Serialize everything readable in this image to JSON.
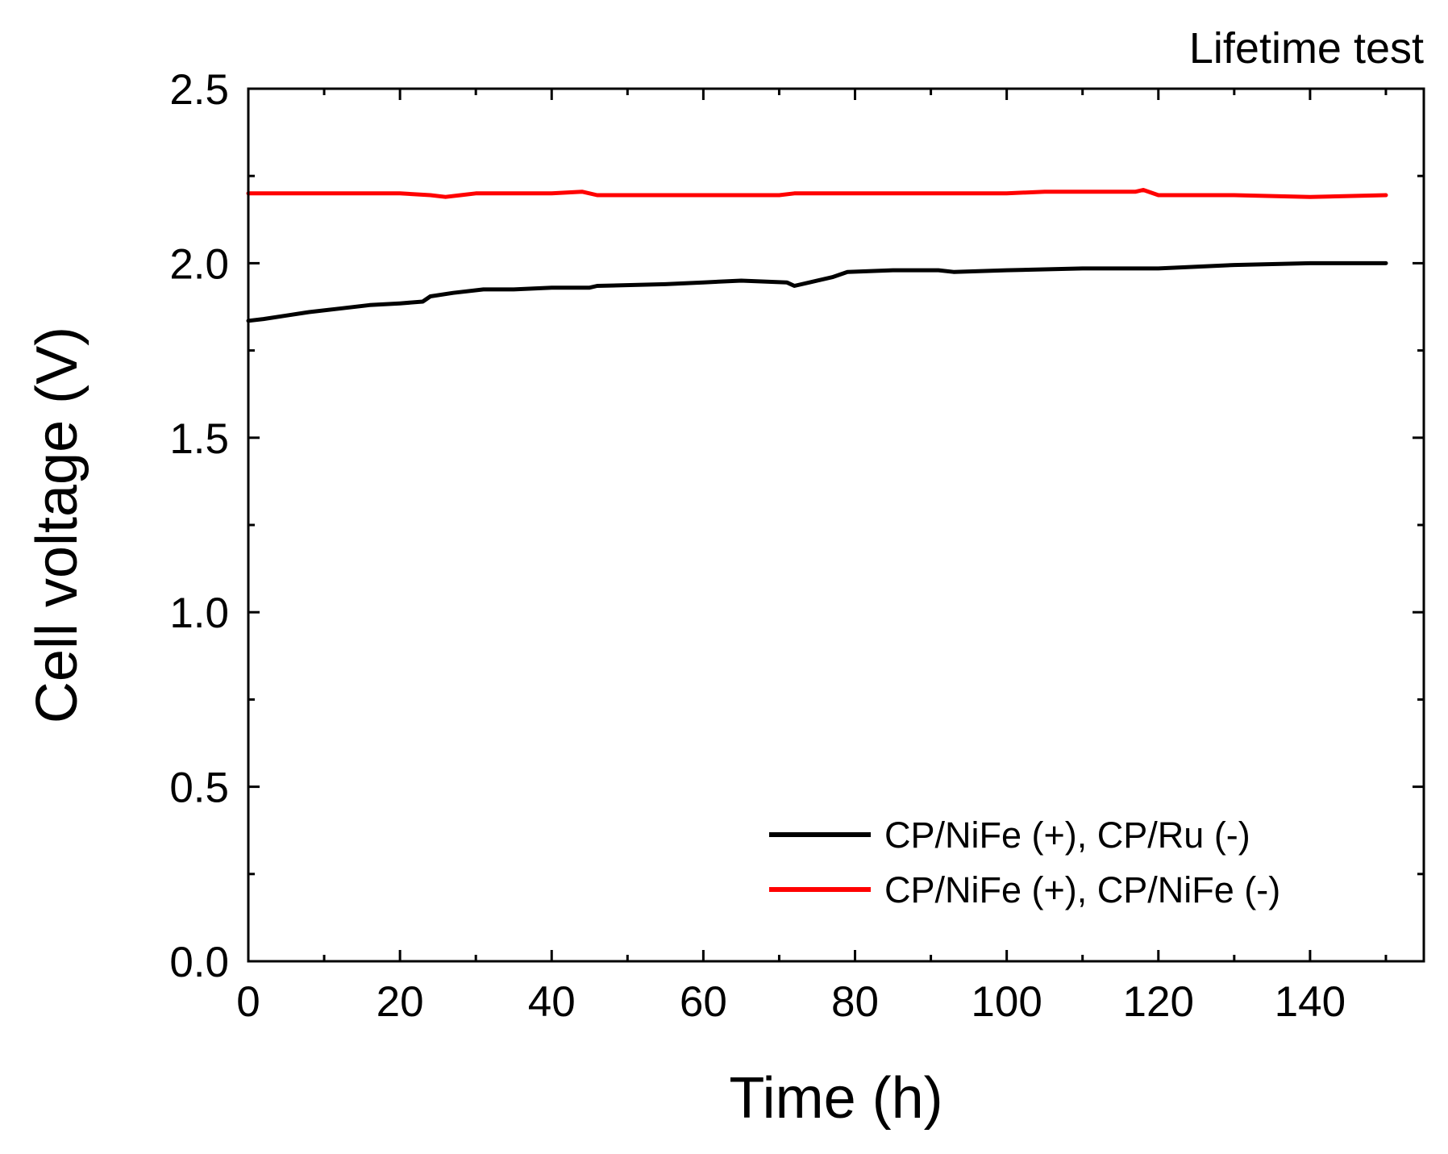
{
  "chart_data": {
    "type": "line",
    "title": "Lifetime test",
    "xlabel": "Time (h)",
    "ylabel": "Cell voltage (V)",
    "xlim": [
      0,
      155
    ],
    "ylim": [
      0,
      2.5
    ],
    "xticks": [
      0,
      20,
      40,
      60,
      80,
      100,
      120,
      140
    ],
    "xtick_labels": [
      "0",
      "20",
      "40",
      "60",
      "80",
      "100",
      "120",
      "140"
    ],
    "yticks": [
      0.0,
      0.5,
      1.0,
      1.5,
      2.0,
      2.5
    ],
    "ytick_labels": [
      "0.0",
      "0.5",
      "1.0",
      "1.5",
      "2.0",
      "2.5"
    ],
    "x_minor_step": 10,
    "y_minor_step": 0.25,
    "grid": false,
    "legend_position": "bottom-right",
    "series": [
      {
        "name": "CP/NiFe (+), CP/Ru (-)",
        "color": "#000000",
        "x": [
          0,
          2,
          5,
          8,
          12,
          16,
          20,
          23,
          24,
          27,
          31,
          35,
          40,
          45,
          46,
          55,
          60,
          65,
          71,
          72,
          74,
          77,
          79,
          85,
          91,
          93,
          100,
          110,
          118,
          120,
          125,
          130,
          140,
          150
        ],
        "y": [
          1.835,
          1.84,
          1.85,
          1.86,
          1.87,
          1.88,
          1.885,
          1.89,
          1.905,
          1.915,
          1.925,
          1.925,
          1.93,
          1.93,
          1.935,
          1.94,
          1.945,
          1.95,
          1.945,
          1.935,
          1.945,
          1.96,
          1.975,
          1.98,
          1.98,
          1.975,
          1.98,
          1.985,
          1.985,
          1.985,
          1.99,
          1.995,
          2.0,
          2.0
        ]
      },
      {
        "name": "CP/NiFe (+), CP/NiFe (-)",
        "color": "#ff0000",
        "x": [
          0,
          10,
          20,
          24,
          26,
          28,
          30,
          40,
          44,
          46,
          60,
          70,
          72,
          80,
          100,
          105,
          117,
          118,
          120,
          130,
          140,
          150
        ],
        "y": [
          2.2,
          2.2,
          2.2,
          2.195,
          2.19,
          2.195,
          2.2,
          2.2,
          2.205,
          2.195,
          2.195,
          2.195,
          2.2,
          2.2,
          2.2,
          2.205,
          2.205,
          2.21,
          2.195,
          2.195,
          2.19,
          2.195
        ]
      }
    ]
  }
}
